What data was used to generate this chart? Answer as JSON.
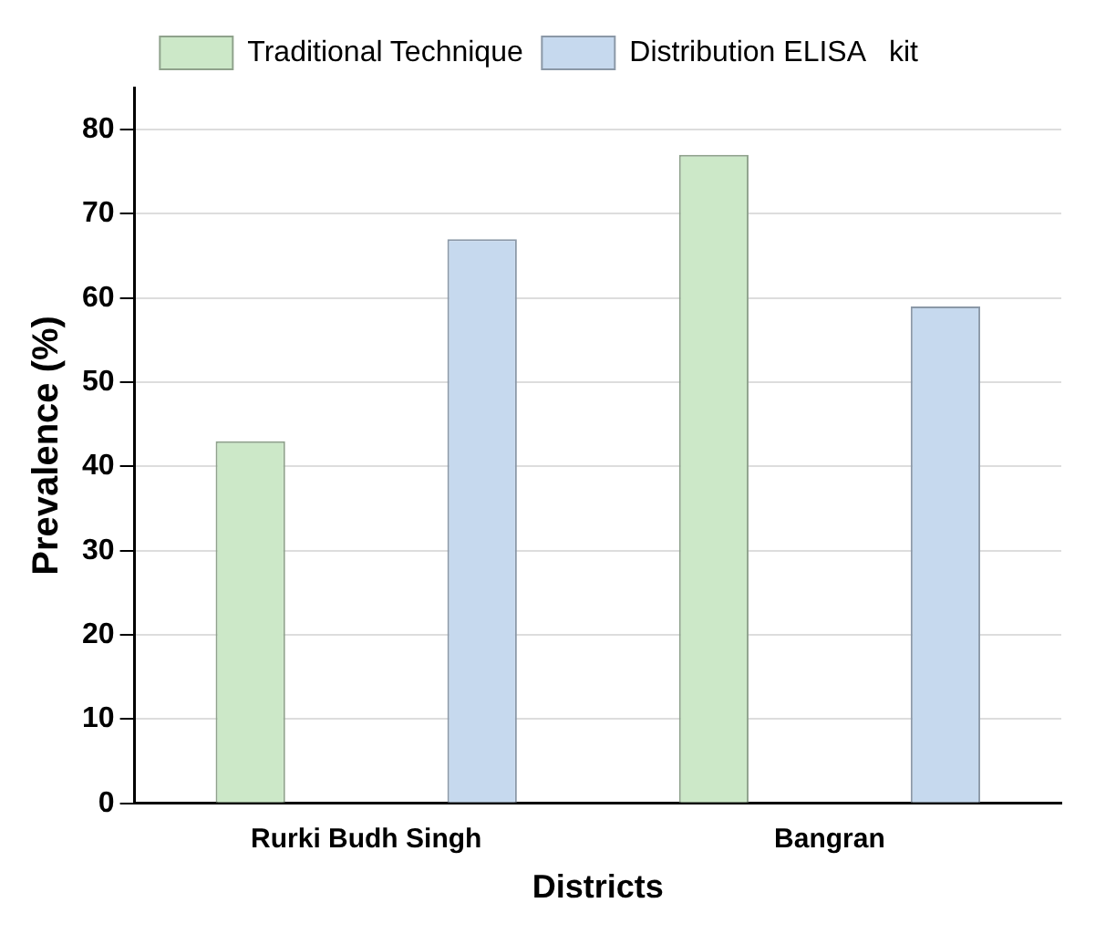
{
  "chart_data": {
    "type": "bar",
    "xlabel": "Districts",
    "ylabel": "Prevalence (%)",
    "categories": [
      "Rurki Budh Singh",
      "Bangran"
    ],
    "series": [
      {
        "name": "Traditional Technique",
        "color": "#cce8c8",
        "values": [
          43,
          77
        ]
      },
      {
        "name": "Distribution ELISA   kit",
        "color": "#c6d9ee",
        "values": [
          67,
          59
        ]
      }
    ],
    "ylim": [
      0,
      85
    ],
    "yticks": [
      0,
      10,
      20,
      30,
      40,
      50,
      60,
      70,
      80
    ],
    "grid": "y",
    "legend": "top"
  }
}
